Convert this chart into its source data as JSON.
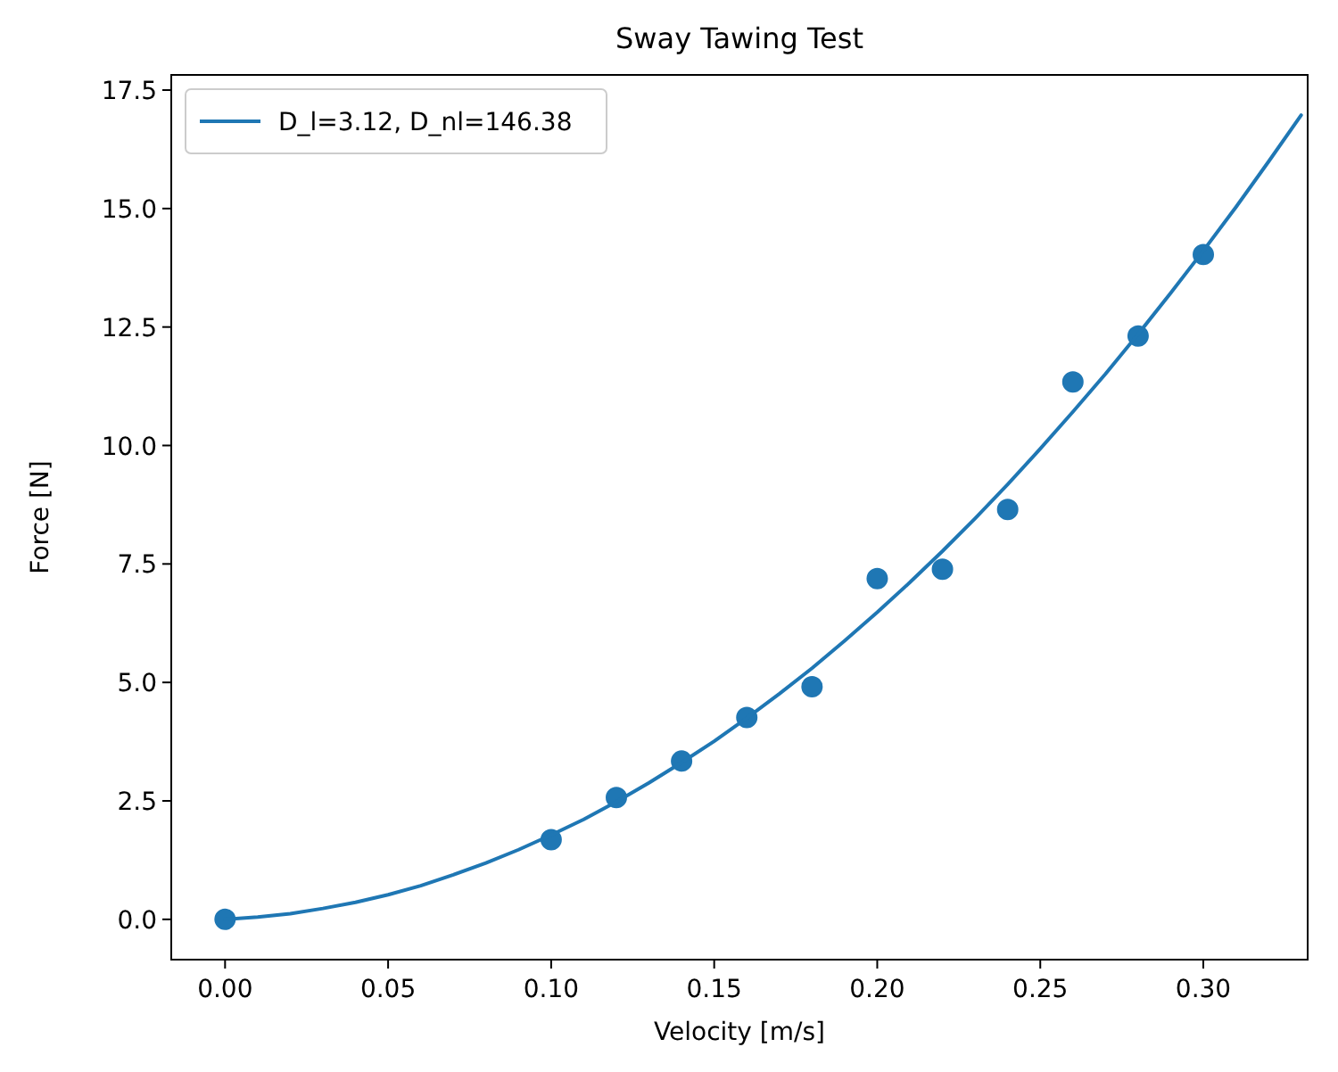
{
  "chart_data": {
    "type": "scatter",
    "title": "Sway Tawing Test",
    "xlabel": "Velocity [m/s]",
    "ylabel": "Force [N]",
    "xlim": [
      -0.0165,
      0.332
    ],
    "xticks": [
      {
        "value": 0,
        "label": "0.00"
      },
      0.05,
      {
        "value": 0.1,
        "label": "0.10"
      },
      0.15,
      {
        "value": 0.2,
        "label": "0.20"
      },
      0.25,
      {
        "value": 0.3,
        "label": "0.30"
      }
    ],
    "ylim": [
      -0.85,
      17.82
    ],
    "yticks": [
      {
        "value": 0,
        "label": "0.0"
      },
      2.5,
      {
        "value": 5,
        "label": "5.0"
      },
      7.5,
      {
        "value": 10,
        "label": "10.0"
      },
      12.5,
      {
        "value": 15,
        "label": "15.0"
      },
      17.5
    ],
    "grid": false,
    "legend": "top left",
    "series": [
      {
        "color": "#1f77b4",
        "marker": "circle",
        "x": [
          0,
          0.1,
          0.12,
          0.14,
          0.16,
          0.18,
          0.2,
          0.22,
          0.24,
          0.26,
          0.28,
          0.3
        ],
        "values": [
          0,
          1.68,
          2.57,
          3.34,
          4.26,
          4.91,
          7.19,
          7.39,
          8.65,
          11.34,
          12.31,
          14.03
        ]
      },
      {
        "type": "line",
        "name": "D_l=3.12, D_nl=146.38",
        "color": "#1f77b4",
        "marker": "none",
        "line_style": "solid",
        "x": [
          0,
          0.01,
          0.02,
          0.03,
          0.04,
          0.05,
          0.06,
          0.07,
          0.08,
          0.09,
          0.1,
          0.11,
          0.12,
          0.13,
          0.14,
          0.15,
          0.16,
          0.17,
          0.18,
          0.19,
          0.2,
          0.21,
          0.22,
          0.23,
          0.24,
          0.25,
          0.26,
          0.27,
          0.28,
          0.29,
          0.3,
          0.31,
          0.32,
          0.33
        ],
        "values": [
          0,
          0.05,
          0.12,
          0.23,
          0.36,
          0.52,
          0.71,
          0.94,
          1.19,
          1.47,
          1.78,
          2.11,
          2.48,
          2.88,
          3.31,
          3.76,
          4.25,
          4.76,
          5.3,
          5.88,
          6.48,
          7.11,
          7.77,
          8.46,
          9.18,
          9.93,
          10.71,
          11.51,
          12.35,
          13.22,
          14.11,
          15.03,
          15.99,
          16.97
        ]
      }
    ]
  }
}
